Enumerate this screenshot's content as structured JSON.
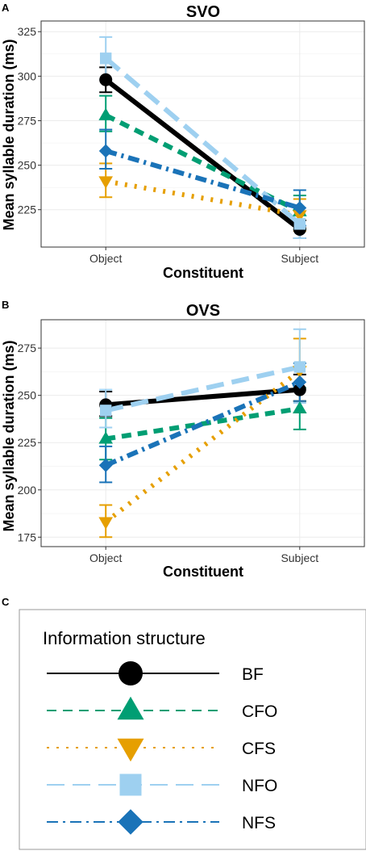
{
  "panel_labels": [
    "A",
    "B",
    "C"
  ],
  "legend": {
    "title": "Information structure",
    "items": [
      {
        "label": "BF",
        "color": "#000000",
        "dash": "solid",
        "shape": "circle"
      },
      {
        "label": "CFO",
        "color": "#009E73",
        "dash": "dashed",
        "shape": "triangle-up"
      },
      {
        "label": "CFS",
        "color": "#E69F00",
        "dash": "dotted",
        "shape": "triangle-down"
      },
      {
        "label": "NFO",
        "color": "#9ED0F0",
        "dash": "longdash",
        "shape": "square"
      },
      {
        "label": "NFS",
        "color": "#1A73B8",
        "dash": "dotdash",
        "shape": "diamond"
      }
    ]
  },
  "chart_data": [
    {
      "type": "line",
      "panel": "A",
      "title": "SVO",
      "xlabel": "Constituent",
      "ylabel": "Mean syllable duration (ms)",
      "categories": [
        "Object",
        "Subject"
      ],
      "ylim": [
        204,
        331
      ],
      "yticks": [
        225,
        250,
        275,
        300,
        325
      ],
      "grid": true,
      "series": [
        {
          "name": "BF",
          "values": [
            298,
            214
          ],
          "lower": [
            291,
            209
          ],
          "upper": [
            305,
            219
          ]
        },
        {
          "name": "CFO",
          "values": [
            278,
            224
          ],
          "lower": [
            269,
            214
          ],
          "upper": [
            289,
            233
          ]
        },
        {
          "name": "CFS",
          "values": [
            241,
            222
          ],
          "lower": [
            232,
            213
          ],
          "upper": [
            251,
            231
          ]
        },
        {
          "name": "NFO",
          "values": [
            310,
            217
          ],
          "lower": [
            298,
            209
          ],
          "upper": [
            322,
            226
          ]
        },
        {
          "name": "NFS",
          "values": [
            258,
            226
          ],
          "lower": [
            248,
            216
          ],
          "upper": [
            270,
            236
          ]
        }
      ]
    },
    {
      "type": "line",
      "panel": "B",
      "title": "OVS",
      "xlabel": "Constituent",
      "ylabel": "Mean syllable duration (ms)",
      "categories": [
        "Object",
        "Subject"
      ],
      "ylim": [
        170,
        290
      ],
      "yticks": [
        175,
        200,
        225,
        250,
        275
      ],
      "grid": true,
      "series": [
        {
          "name": "BF",
          "values": [
            245,
            253
          ],
          "lower": [
            239,
            247
          ],
          "upper": [
            252,
            261
          ]
        },
        {
          "name": "CFO",
          "values": [
            227,
            243
          ],
          "lower": [
            216,
            232
          ],
          "upper": [
            238,
            254
          ]
        },
        {
          "name": "CFS",
          "values": [
            183,
            263
          ],
          "lower": [
            175,
            247
          ],
          "upper": [
            192,
            280
          ]
        },
        {
          "name": "NFO",
          "values": [
            242,
            265
          ],
          "lower": [
            233,
            246
          ],
          "upper": [
            253,
            285
          ]
        },
        {
          "name": "NFS",
          "values": [
            213,
            257
          ],
          "lower": [
            204,
            247
          ],
          "upper": [
            223,
            267
          ]
        }
      ]
    }
  ]
}
